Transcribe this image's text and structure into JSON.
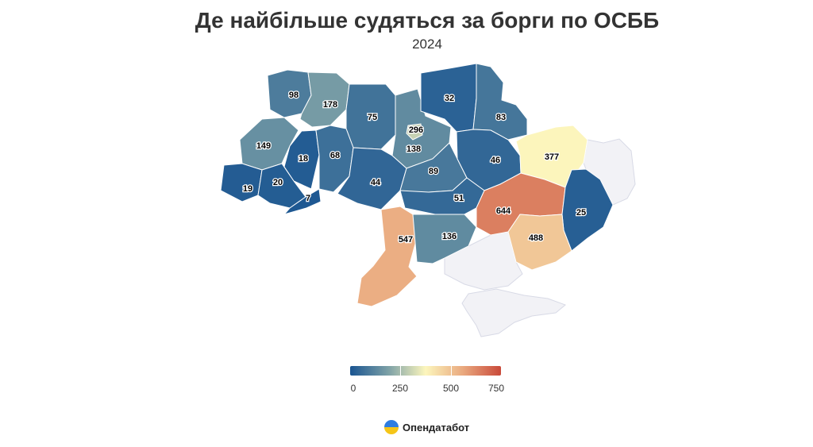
{
  "title": "Де найбільше судяться за борги по ОСББ",
  "subtitle": "2024",
  "brand": "Опендатабот",
  "colors": {
    "scale": [
      "#1a5591",
      "#7b9fa6",
      "#fcf6bd",
      "#e9a87e",
      "#c94a3a"
    ],
    "no_data": "#f2f2f6"
  },
  "legend": {
    "min": 0,
    "max": 750,
    "ticks": [
      "0",
      "250",
      "500",
      "750"
    ]
  },
  "regions": [
    {
      "id": "volyn",
      "value": 98
    },
    {
      "id": "rivne",
      "value": 178
    },
    {
      "id": "zhytomyr",
      "value": 75
    },
    {
      "id": "kyiv-oblast",
      "value": 138
    },
    {
      "id": "kyiv-city",
      "value": 296
    },
    {
      "id": "chernihiv",
      "value": 32
    },
    {
      "id": "sumy",
      "value": 83
    },
    {
      "id": "lviv",
      "value": 149
    },
    {
      "id": "ternopil",
      "value": 18
    },
    {
      "id": "khmelnytskyi",
      "value": 68
    },
    {
      "id": "vinnytsia",
      "value": 44
    },
    {
      "id": "cherkasy",
      "value": 89
    },
    {
      "id": "poltava",
      "value": 46
    },
    {
      "id": "kharkiv",
      "value": 377
    },
    {
      "id": "zakarpattia",
      "value": 19
    },
    {
      "id": "ivano-frankivsk",
      "value": 20
    },
    {
      "id": "chernivtsi",
      "value": 7
    },
    {
      "id": "kirovohrad",
      "value": 51
    },
    {
      "id": "dnipro",
      "value": 644
    },
    {
      "id": "donetsk",
      "value": 25
    },
    {
      "id": "odesa",
      "value": 547
    },
    {
      "id": "mykolaiv",
      "value": 136
    },
    {
      "id": "zaporizhzhia",
      "value": 488
    }
  ],
  "no_data_regions": [
    "luhansk",
    "kherson",
    "crimea"
  ]
}
